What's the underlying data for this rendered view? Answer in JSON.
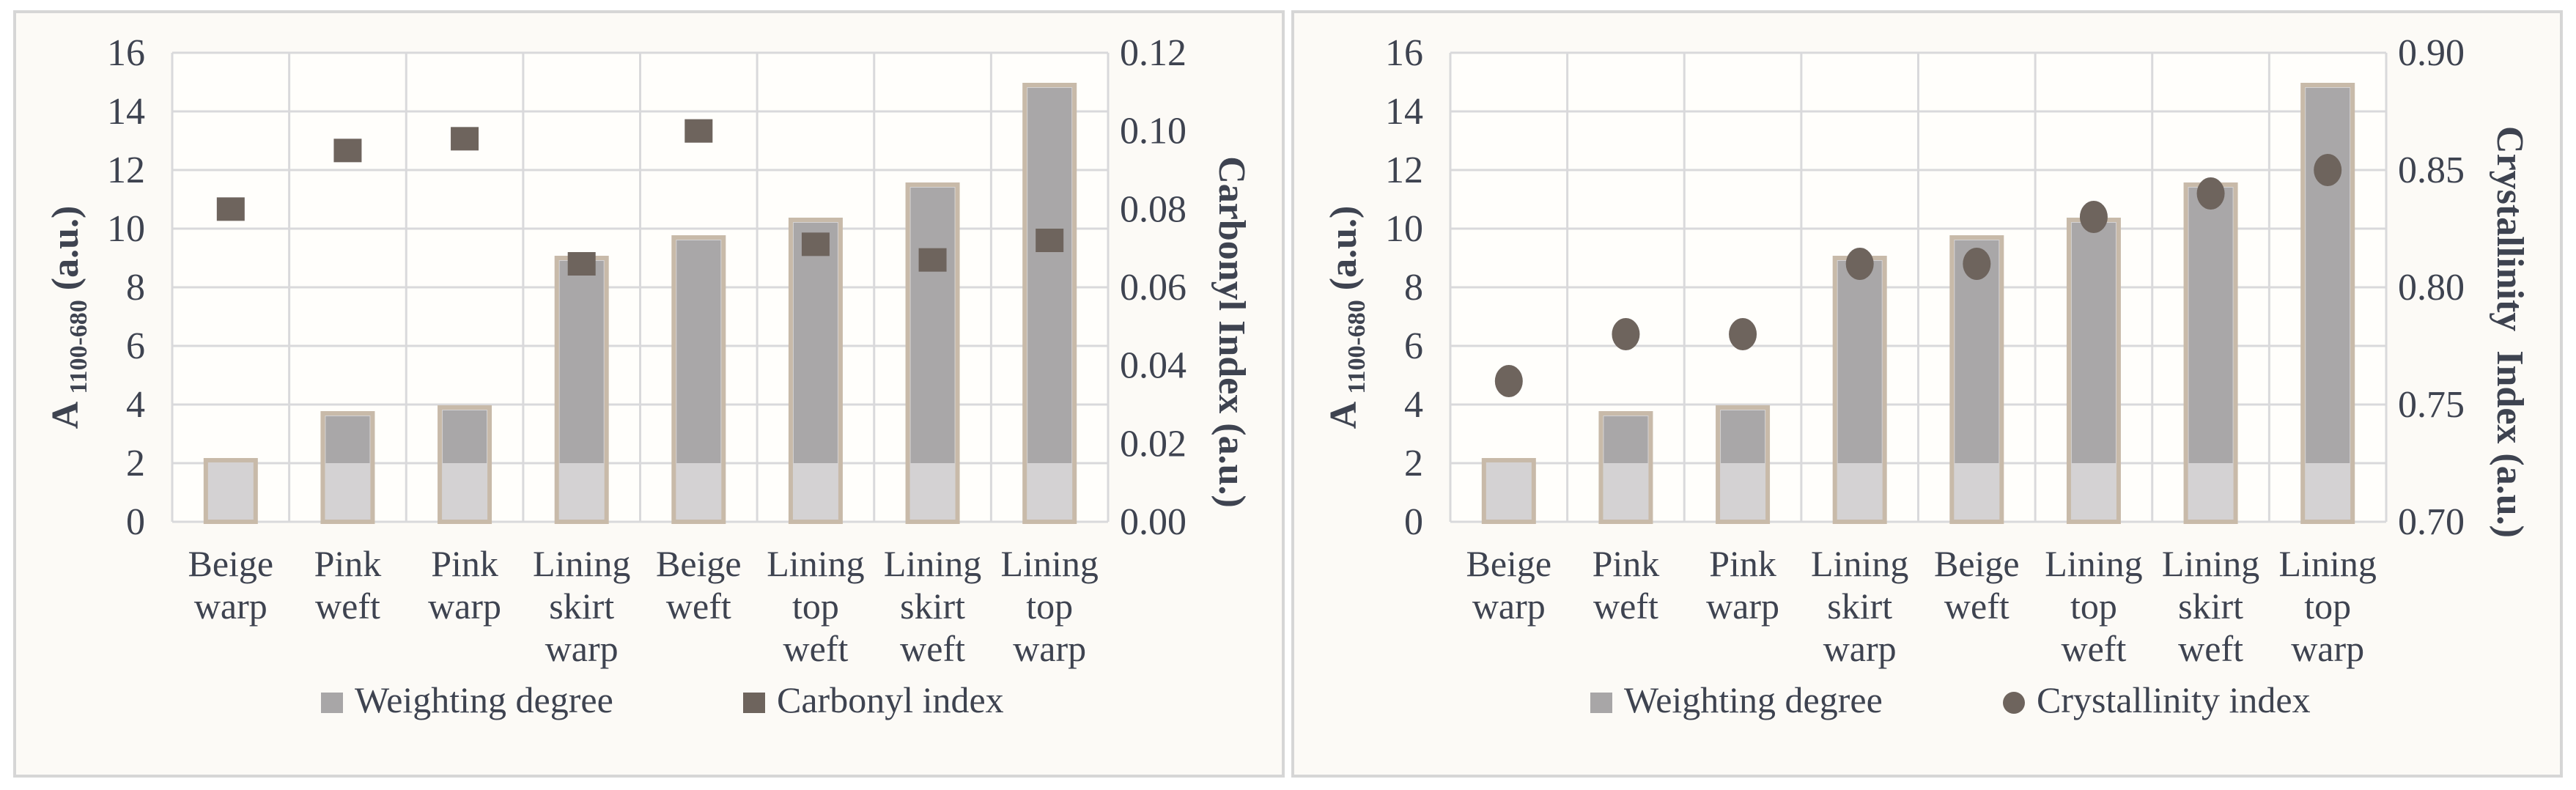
{
  "figure": {
    "description": "Two-panel column chart figure: weighting degree bars with carbonyl index and crystallinity index markers for silk textile samples"
  },
  "colors": {
    "panel_background": "#fcfaf6",
    "panel_border": "#d6d6d6",
    "plot_background": "#fffefb",
    "gridline": "#d9d9db",
    "bar_light_fill": "#d4d2d3",
    "bar_dark_fill": "#a9a7a8",
    "bar_border": "#c8baa9",
    "marker": "#6e645d",
    "legend_bar_swatch": "#a8a6a7",
    "text": "#3e4350"
  },
  "chart_data": [
    {
      "type": "bar",
      "subtype": "bar-with-scatter-overlay",
      "categories": [
        "Beige warp",
        "Pink weft",
        "Pink warp",
        "Lining skirt warp",
        "Beige weft",
        "Lining top weft",
        "Lining skirt weft",
        "Lining top warp"
      ],
      "category_lines": [
        [
          "Beige",
          "warp"
        ],
        [
          "Pink",
          "weft"
        ],
        [
          "Pink",
          "warp"
        ],
        [
          "Lining",
          "skirt",
          "warp"
        ],
        [
          "Beige",
          "weft"
        ],
        [
          "Lining",
          "top",
          "weft"
        ],
        [
          "Lining",
          "skirt",
          "weft"
        ],
        [
          "Lining",
          "top",
          "warp"
        ]
      ],
      "series": [
        {
          "name": "Weighting degree",
          "type": "bar",
          "axis": "left",
          "values": [
            2.1,
            3.7,
            3.9,
            9.0,
            9.7,
            10.3,
            11.5,
            14.9
          ]
        },
        {
          "name": "Carbonyl index",
          "type": "scatter",
          "marker": "square",
          "axis": "right",
          "values": [
            0.08,
            0.095,
            0.098,
            0.066,
            0.1,
            0.071,
            0.067,
            0.072
          ]
        }
      ],
      "left_axis": {
        "title_main": "A",
        "title_sub": "1100-680",
        "title_unit": " (a.u.)",
        "min": 0,
        "max": 16,
        "ticks": [
          "0",
          "2",
          "4",
          "6",
          "8",
          "10",
          "12",
          "14",
          "16"
        ]
      },
      "right_axis": {
        "title": "Carbonyl Index (a.u.)",
        "min": 0.0,
        "max": 0.12,
        "ticks": [
          "0.00",
          "0.02",
          "0.04",
          "0.06",
          "0.08",
          "0.10",
          "0.12"
        ]
      },
      "bar_light_segment_max": 2.0,
      "grid": true,
      "legend_position": "bottom",
      "legend": [
        {
          "label": "Weighting degree",
          "marker": "square",
          "color": "#a8a6a7"
        },
        {
          "label": "Carbonyl index",
          "marker": "square",
          "color": "#6e645d"
        }
      ]
    },
    {
      "type": "bar",
      "subtype": "bar-with-scatter-overlay",
      "categories": [
        "Beige warp",
        "Pink weft",
        "Pink warp",
        "Lining skirt warp",
        "Beige weft",
        "Lining top weft",
        "Lining skirt weft",
        "Lining top warp"
      ],
      "category_lines": [
        [
          "Beige",
          "warp"
        ],
        [
          "Pink",
          "weft"
        ],
        [
          "Pink",
          "warp"
        ],
        [
          "Lining",
          "skirt",
          "warp"
        ],
        [
          "Beige",
          "weft"
        ],
        [
          "Lining",
          "top",
          "weft"
        ],
        [
          "Lining",
          "skirt",
          "weft"
        ],
        [
          "Lining",
          "top",
          "warp"
        ]
      ],
      "series": [
        {
          "name": "Weighting degree",
          "type": "bar",
          "axis": "left",
          "values": [
            2.1,
            3.7,
            3.9,
            9.0,
            9.7,
            10.3,
            11.5,
            14.9
          ]
        },
        {
          "name": "Crystallinity index",
          "type": "scatter",
          "marker": "circle",
          "axis": "right",
          "values": [
            0.76,
            0.78,
            0.78,
            0.81,
            0.81,
            0.83,
            0.84,
            0.85
          ]
        }
      ],
      "left_axis": {
        "title_main": "A",
        "title_sub": "1100-680",
        "title_unit": " (a.u.)",
        "min": 0,
        "max": 16,
        "ticks": [
          "0",
          "2",
          "4",
          "6",
          "8",
          "10",
          "12",
          "14",
          "16"
        ]
      },
      "right_axis": {
        "title": "Crystallinity  Index (a.u.)",
        "min": 0.7,
        "max": 0.9,
        "ticks": [
          "0.70",
          "0.75",
          "0.80",
          "0.85",
          "0.90"
        ]
      },
      "bar_light_segment_max": 2.0,
      "grid": true,
      "legend_position": "bottom",
      "legend": [
        {
          "label": "Weighting degree",
          "marker": "square",
          "color": "#a8a6a7"
        },
        {
          "label": "Crystallinity index",
          "marker": "circle",
          "color": "#6e645d"
        }
      ]
    }
  ]
}
